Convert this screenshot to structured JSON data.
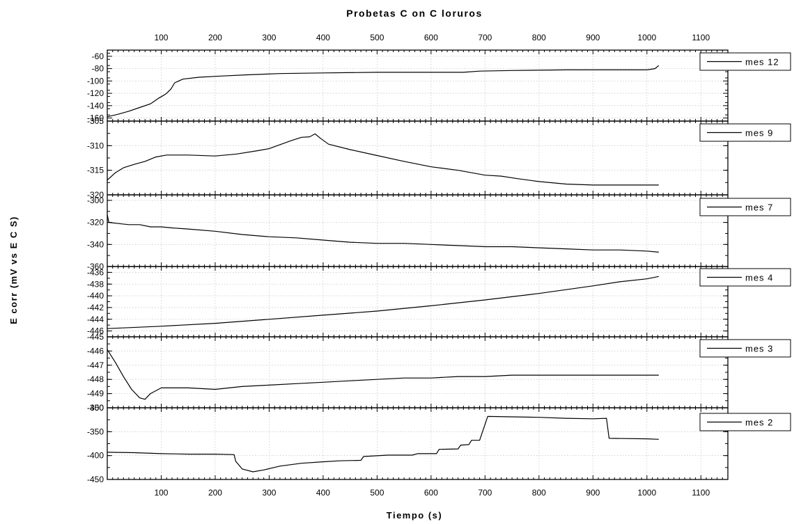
{
  "chart_data": {
    "type": "line",
    "title": "Probetas C on C loruros",
    "xlabel": "Tiempo (s)",
    "ylabel": "E corr (mV vs E C S)",
    "xlim": [
      0,
      1150
    ],
    "xticks": [
      100,
      200,
      300,
      400,
      500,
      600,
      700,
      800,
      900,
      1000,
      1100
    ],
    "grid": true,
    "legend_position": "right of each panel",
    "panels": [
      {
        "name": "mes 12",
        "ylim": [
          -165,
          -50
        ],
        "yticks": [
          -60,
          -80,
          -100,
          -120,
          -140,
          -160
        ],
        "points": [
          [
            0,
            -158
          ],
          [
            20,
            -154
          ],
          [
            40,
            -149
          ],
          [
            60,
            -143
          ],
          [
            80,
            -137
          ],
          [
            95,
            -128
          ],
          [
            105,
            -123
          ],
          [
            110,
            -120
          ],
          [
            118,
            -113
          ],
          [
            125,
            -103
          ],
          [
            140,
            -97
          ],
          [
            170,
            -94
          ],
          [
            210,
            -92
          ],
          [
            260,
            -90
          ],
          [
            320,
            -88
          ],
          [
            400,
            -87
          ],
          [
            500,
            -86
          ],
          [
            600,
            -86
          ],
          [
            660,
            -86
          ],
          [
            690,
            -84
          ],
          [
            750,
            -83
          ],
          [
            850,
            -82
          ],
          [
            950,
            -82
          ],
          [
            1000,
            -82
          ],
          [
            1015,
            -80
          ],
          [
            1022,
            -75
          ]
        ]
      },
      {
        "name": "mes 9",
        "ylim": [
          -320,
          -305
        ],
        "yticks": [
          -305,
          -310,
          -315,
          -320
        ],
        "points": [
          [
            0,
            -317
          ],
          [
            15,
            -315.5
          ],
          [
            30,
            -314.5
          ],
          [
            50,
            -313.8
          ],
          [
            70,
            -313.2
          ],
          [
            90,
            -312.3
          ],
          [
            110,
            -311.9
          ],
          [
            150,
            -311.9
          ],
          [
            200,
            -312.1
          ],
          [
            240,
            -311.7
          ],
          [
            280,
            -311
          ],
          [
            300,
            -310.6
          ],
          [
            320,
            -309.8
          ],
          [
            340,
            -309
          ],
          [
            360,
            -308.3
          ],
          [
            375,
            -308.2
          ],
          [
            385,
            -307.6
          ],
          [
            395,
            -308.5
          ],
          [
            410,
            -309.7
          ],
          [
            450,
            -310.8
          ],
          [
            500,
            -312
          ],
          [
            550,
            -313.2
          ],
          [
            600,
            -314.3
          ],
          [
            650,
            -315
          ],
          [
            700,
            -316
          ],
          [
            730,
            -316.2
          ],
          [
            760,
            -316.7
          ],
          [
            800,
            -317.3
          ],
          [
            850,
            -317.8
          ],
          [
            900,
            -318
          ],
          [
            950,
            -318
          ],
          [
            1022,
            -318
          ]
        ]
      },
      {
        "name": "mes 7",
        "ylim": [
          -360,
          -295
        ],
        "yticks": [
          -300,
          -320,
          -340,
          -360
        ],
        "points": [
          [
            0,
            -313
          ],
          [
            3,
            -320
          ],
          [
            20,
            -321
          ],
          [
            40,
            -322
          ],
          [
            60,
            -322
          ],
          [
            80,
            -324
          ],
          [
            100,
            -324
          ],
          [
            120,
            -325
          ],
          [
            150,
            -326
          ],
          [
            200,
            -328
          ],
          [
            250,
            -331
          ],
          [
            300,
            -333
          ],
          [
            350,
            -334
          ],
          [
            400,
            -336
          ],
          [
            450,
            -338
          ],
          [
            500,
            -339
          ],
          [
            550,
            -339
          ],
          [
            600,
            -340
          ],
          [
            650,
            -341
          ],
          [
            700,
            -342
          ],
          [
            750,
            -342
          ],
          [
            800,
            -343
          ],
          [
            850,
            -344
          ],
          [
            900,
            -345
          ],
          [
            950,
            -345
          ],
          [
            1000,
            -346
          ],
          [
            1022,
            -347
          ]
        ]
      },
      {
        "name": "mes 4",
        "ylim": [
          -447,
          -435
        ],
        "yticks": [
          -436,
          -438,
          -440,
          -442,
          -444,
          -446
        ],
        "points": [
          [
            0,
            -445.6
          ],
          [
            100,
            -445.2
          ],
          [
            200,
            -444.7
          ],
          [
            300,
            -444
          ],
          [
            400,
            -443.3
          ],
          [
            500,
            -442.6
          ],
          [
            600,
            -441.7
          ],
          [
            700,
            -440.7
          ],
          [
            800,
            -439.6
          ],
          [
            900,
            -438.3
          ],
          [
            950,
            -437.6
          ],
          [
            1000,
            -437.1
          ],
          [
            1022,
            -436.7
          ]
        ]
      },
      {
        "name": "mes 3",
        "ylim": [
          -450,
          -445
        ],
        "yticks": [
          -445,
          -446,
          -447,
          -448,
          -449,
          -450
        ],
        "points": [
          [
            0,
            -445.9
          ],
          [
            15,
            -446.8
          ],
          [
            30,
            -447.8
          ],
          [
            45,
            -448.7
          ],
          [
            60,
            -449.3
          ],
          [
            70,
            -449.4
          ],
          [
            80,
            -449
          ],
          [
            100,
            -448.6
          ],
          [
            150,
            -448.6
          ],
          [
            200,
            -448.7
          ],
          [
            250,
            -448.5
          ],
          [
            300,
            -448.4
          ],
          [
            350,
            -448.3
          ],
          [
            400,
            -448.2
          ],
          [
            450,
            -448.1
          ],
          [
            500,
            -448
          ],
          [
            550,
            -447.9
          ],
          [
            600,
            -447.9
          ],
          [
            650,
            -447.8
          ],
          [
            700,
            -447.8
          ],
          [
            750,
            -447.7
          ],
          [
            800,
            -447.7
          ],
          [
            850,
            -447.7
          ],
          [
            900,
            -447.7
          ],
          [
            950,
            -447.7
          ],
          [
            1022,
            -447.7
          ]
        ]
      },
      {
        "name": "mes 2",
        "ylim": [
          -450,
          -300
        ],
        "yticks": [
          -300,
          -350,
          -400,
          -450
        ],
        "points": [
          [
            0,
            -393
          ],
          [
            50,
            -394
          ],
          [
            100,
            -396
          ],
          [
            150,
            -397
          ],
          [
            200,
            -397
          ],
          [
            235,
            -398
          ],
          [
            238,
            -412
          ],
          [
            250,
            -428
          ],
          [
            270,
            -434
          ],
          [
            290,
            -430
          ],
          [
            320,
            -422
          ],
          [
            360,
            -416
          ],
          [
            400,
            -413
          ],
          [
            430,
            -411
          ],
          [
            470,
            -410
          ],
          [
            475,
            -402
          ],
          [
            520,
            -399
          ],
          [
            565,
            -399
          ],
          [
            575,
            -396
          ],
          [
            610,
            -396
          ],
          [
            615,
            -387
          ],
          [
            650,
            -386
          ],
          [
            655,
            -378
          ],
          [
            670,
            -377
          ],
          [
            675,
            -368
          ],
          [
            690,
            -368
          ],
          [
            705,
            -318
          ],
          [
            800,
            -320
          ],
          [
            850,
            -322
          ],
          [
            900,
            -323
          ],
          [
            925,
            -322
          ],
          [
            930,
            -364
          ],
          [
            1000,
            -365
          ],
          [
            1022,
            -366
          ]
        ]
      }
    ]
  }
}
